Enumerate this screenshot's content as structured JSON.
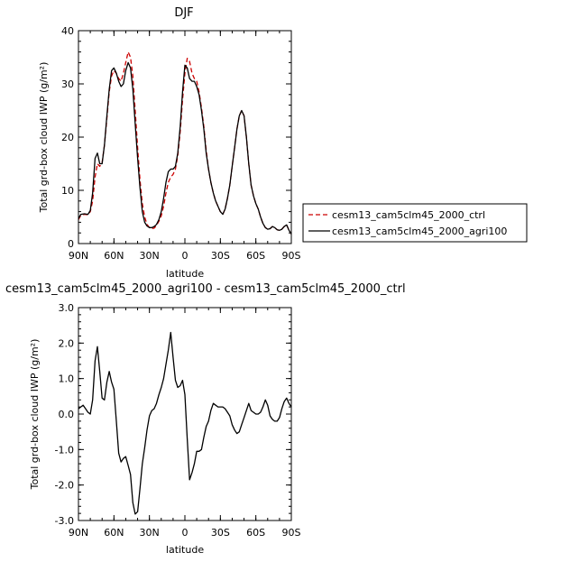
{
  "chart_data": [
    {
      "type": "line",
      "title": "DJF",
      "xlabel": "latitude",
      "ylabel": "Total grd-box cloud IWP (g/m²)",
      "xlim": [
        90,
        -90
      ],
      "ylim": [
        0,
        40
      ],
      "xticks": [
        90,
        60,
        30,
        0,
        -30,
        -60,
        -90
      ],
      "xtick_labels": [
        "90N",
        "60N",
        "30N",
        "0",
        "30S",
        "60S",
        "90S"
      ],
      "yticks": [
        0,
        10,
        20,
        30,
        40
      ],
      "ytick_labels": [
        "0",
        "10",
        "20",
        "30",
        "40"
      ],
      "legend_position": "right",
      "series": [
        {
          "name": "cesm13_cam5clm45_2000_ctrl",
          "color": "#cc0000",
          "dash": "dashed",
          "x": [
            90,
            88,
            85,
            82,
            80,
            78,
            76,
            74,
            72,
            70,
            68,
            66,
            64,
            62,
            60,
            58,
            56,
            54,
            52,
            50,
            48,
            46,
            44,
            42,
            40,
            38,
            36,
            34,
            32,
            30,
            28,
            26,
            24,
            22,
            20,
            18,
            16,
            14,
            12,
            10,
            8,
            6,
            4,
            2,
            0,
            -2,
            -4,
            -6,
            -8,
            -10,
            -12,
            -14,
            -16,
            -18,
            -20,
            -22,
            -24,
            -26,
            -28,
            -30,
            -32,
            -34,
            -36,
            -38,
            -40,
            -42,
            -44,
            -46,
            -48,
            -50,
            -52,
            -54,
            -56,
            -58,
            -60,
            -62,
            -64,
            -66,
            -68,
            -70,
            -72,
            -74,
            -76,
            -78,
            -80,
            -82,
            -84,
            -86,
            -88,
            -90
          ],
          "values": [
            4.5,
            5.3,
            5.5,
            5.4,
            6.0,
            8.0,
            12.5,
            15.0,
            14.5,
            15.2,
            18.5,
            23.5,
            28.5,
            31.5,
            32.5,
            32.0,
            31.0,
            30.5,
            32.0,
            34.0,
            36.0,
            35.0,
            31.5,
            25.0,
            18.0,
            12.0,
            7.5,
            5.0,
            3.6,
            3.0,
            2.8,
            2.9,
            3.4,
            4.2,
            5.2,
            7.0,
            9.5,
            11.5,
            12.5,
            13.0,
            14.0,
            16.5,
            21.0,
            27.0,
            32.0,
            34.8,
            34.2,
            32.0,
            31.0,
            30.5,
            28.5,
            25.5,
            22.0,
            17.5,
            14.0,
            11.5,
            9.5,
            8.0,
            7.0,
            6.0,
            5.5,
            6.5,
            8.5,
            11.0,
            14.5,
            18.0,
            21.5,
            24.0,
            25.0,
            24.0,
            20.0,
            15.0,
            11.0,
            9.0,
            7.5,
            6.5,
            5.0,
            3.8,
            3.0,
            2.7,
            2.8,
            3.2,
            3.0,
            2.6,
            2.5,
            2.7,
            3.2,
            3.5,
            2.5,
            1.8
          ]
        },
        {
          "name": "cesm13_cam5clm45_2000_agri100",
          "color": "#000000",
          "dash": "solid",
          "x": [
            90,
            88,
            85,
            82,
            80,
            78,
            76,
            74,
            72,
            70,
            68,
            66,
            64,
            62,
            60,
            58,
            56,
            54,
            52,
            50,
            48,
            46,
            44,
            42,
            40,
            38,
            36,
            34,
            32,
            30,
            28,
            26,
            24,
            22,
            20,
            18,
            16,
            14,
            12,
            10,
            8,
            6,
            4,
            2,
            0,
            -2,
            -4,
            -6,
            -8,
            -10,
            -12,
            -14,
            -16,
            -18,
            -20,
            -22,
            -24,
            -26,
            -28,
            -30,
            -32,
            -34,
            -36,
            -38,
            -40,
            -42,
            -44,
            -46,
            -48,
            -50,
            -52,
            -54,
            -56,
            -58,
            -60,
            -62,
            -64,
            -66,
            -68,
            -70,
            -72,
            -74,
            -76,
            -78,
            -80,
            -82,
            -84,
            -86,
            -88,
            -90
          ],
          "values": [
            4.7,
            5.5,
            5.6,
            5.5,
            6.2,
            9.5,
            16.0,
            17.0,
            15.0,
            15.0,
            18.5,
            24.0,
            29.0,
            32.5,
            33.0,
            32.0,
            30.5,
            29.5,
            30.0,
            32.5,
            34.0,
            33.0,
            29.0,
            22.5,
            16.0,
            10.5,
            6.0,
            4.0,
            3.3,
            3.0,
            3.0,
            3.2,
            3.6,
            4.5,
            6.0,
            8.5,
            11.5,
            13.5,
            14.0,
            14.0,
            14.5,
            17.0,
            22.0,
            28.5,
            33.5,
            33.0,
            31.0,
            30.5,
            30.5,
            29.5,
            28.0,
            25.0,
            21.5,
            17.0,
            14.0,
            11.5,
            9.5,
            8.0,
            7.0,
            6.0,
            5.5,
            6.5,
            8.5,
            11.0,
            14.5,
            18.0,
            21.5,
            24.0,
            25.0,
            24.0,
            20.0,
            15.0,
            11.0,
            9.0,
            7.5,
            6.5,
            5.0,
            3.8,
            3.0,
            2.7,
            2.8,
            3.2,
            3.0,
            2.6,
            2.5,
            2.7,
            3.2,
            3.5,
            2.5,
            1.8
          ]
        }
      ]
    },
    {
      "type": "line",
      "title": "cesm13_cam5clm45_2000_agri100 - cesm13_cam5clm45_2000_ctrl",
      "xlabel": "latitude",
      "ylabel": "Total grd-box cloud IWP (g/m²)",
      "xlim": [
        90,
        -90
      ],
      "ylim": [
        -3.0,
        3.0
      ],
      "xticks": [
        90,
        60,
        30,
        0,
        -30,
        -60,
        -90
      ],
      "xtick_labels": [
        "90N",
        "60N",
        "30N",
        "0",
        "30S",
        "60S",
        "90S"
      ],
      "yticks": [
        -3.0,
        -2.0,
        -1.0,
        0.0,
        1.0,
        2.0,
        3.0
      ],
      "ytick_labels": [
        "-3.0",
        "-2.0",
        "-1.0",
        "0.0",
        "1.0",
        "2.0",
        "3.0"
      ],
      "series": [
        {
          "color": "#000000",
          "dash": "solid",
          "x": [
            90,
            88,
            86,
            84,
            82,
            80,
            78,
            76,
            74,
            72,
            70,
            68,
            66,
            64,
            62,
            60,
            58,
            56,
            54,
            52,
            50,
            48,
            46,
            44,
            42,
            40,
            38,
            36,
            34,
            32,
            30,
            28,
            26,
            24,
            22,
            20,
            18,
            16,
            14,
            12,
            10,
            8,
            6,
            4,
            2,
            0,
            -2,
            -4,
            -6,
            -8,
            -10,
            -12,
            -14,
            -16,
            -18,
            -20,
            -22,
            -24,
            -26,
            -28,
            -30,
            -32,
            -34,
            -36,
            -38,
            -40,
            -42,
            -44,
            -46,
            -48,
            -50,
            -52,
            -54,
            -56,
            -58,
            -60,
            -62,
            -64,
            -66,
            -68,
            -70,
            -72,
            -74,
            -76,
            -78,
            -80,
            -82,
            -84,
            -86,
            -88,
            -90
          ],
          "values": [
            0.15,
            0.2,
            0.25,
            0.15,
            0.05,
            0.0,
            0.4,
            1.5,
            1.9,
            1.2,
            0.45,
            0.4,
            0.9,
            1.2,
            0.9,
            0.7,
            -0.2,
            -1.1,
            -1.35,
            -1.25,
            -1.2,
            -1.45,
            -1.7,
            -2.5,
            -2.82,
            -2.75,
            -2.1,
            -1.4,
            -0.95,
            -0.45,
            -0.05,
            0.1,
            0.15,
            0.3,
            0.55,
            0.75,
            1.0,
            1.4,
            1.8,
            2.3,
            1.6,
            0.95,
            0.75,
            0.8,
            0.95,
            0.55,
            -0.7,
            -1.85,
            -1.65,
            -1.4,
            -1.05,
            -1.05,
            -1.0,
            -0.65,
            -0.35,
            -0.2,
            0.1,
            0.3,
            0.25,
            0.2,
            0.2,
            0.2,
            0.15,
            0.05,
            -0.05,
            -0.3,
            -0.45,
            -0.55,
            -0.5,
            -0.3,
            -0.1,
            0.1,
            0.3,
            0.1,
            0.05,
            0.0,
            0.0,
            0.05,
            0.2,
            0.4,
            0.25,
            -0.05,
            -0.15,
            -0.2,
            -0.2,
            -0.1,
            0.15,
            0.35,
            0.45,
            0.3,
            0.2
          ]
        }
      ]
    }
  ]
}
